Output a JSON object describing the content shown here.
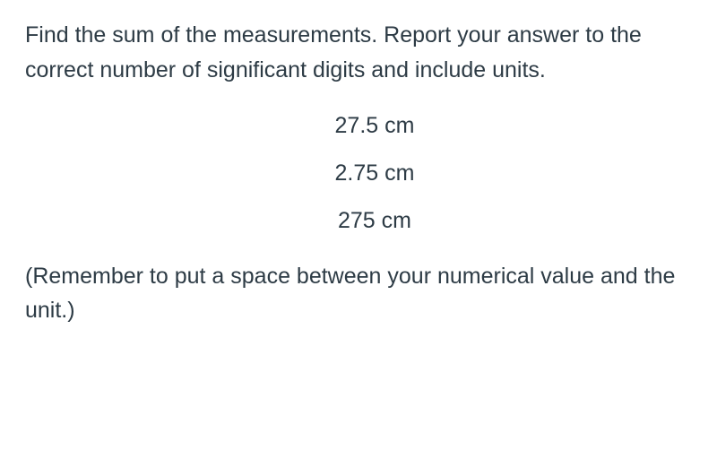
{
  "question": {
    "instruction": "Find the sum of the measurements. Report your answer to the correct number of significant digits and include units.",
    "measurements": [
      "27.5 cm",
      "2.75 cm",
      "275 cm"
    ],
    "note": "(Remember to put a space between your numerical value and the unit.)"
  },
  "styling": {
    "text_color": "#2d3b45",
    "background_color": "#ffffff",
    "font_size_pt": 19,
    "font_family": "Helvetica Neue, Arial, sans-serif",
    "line_height": 1.55,
    "measurement_alignment": "center"
  }
}
